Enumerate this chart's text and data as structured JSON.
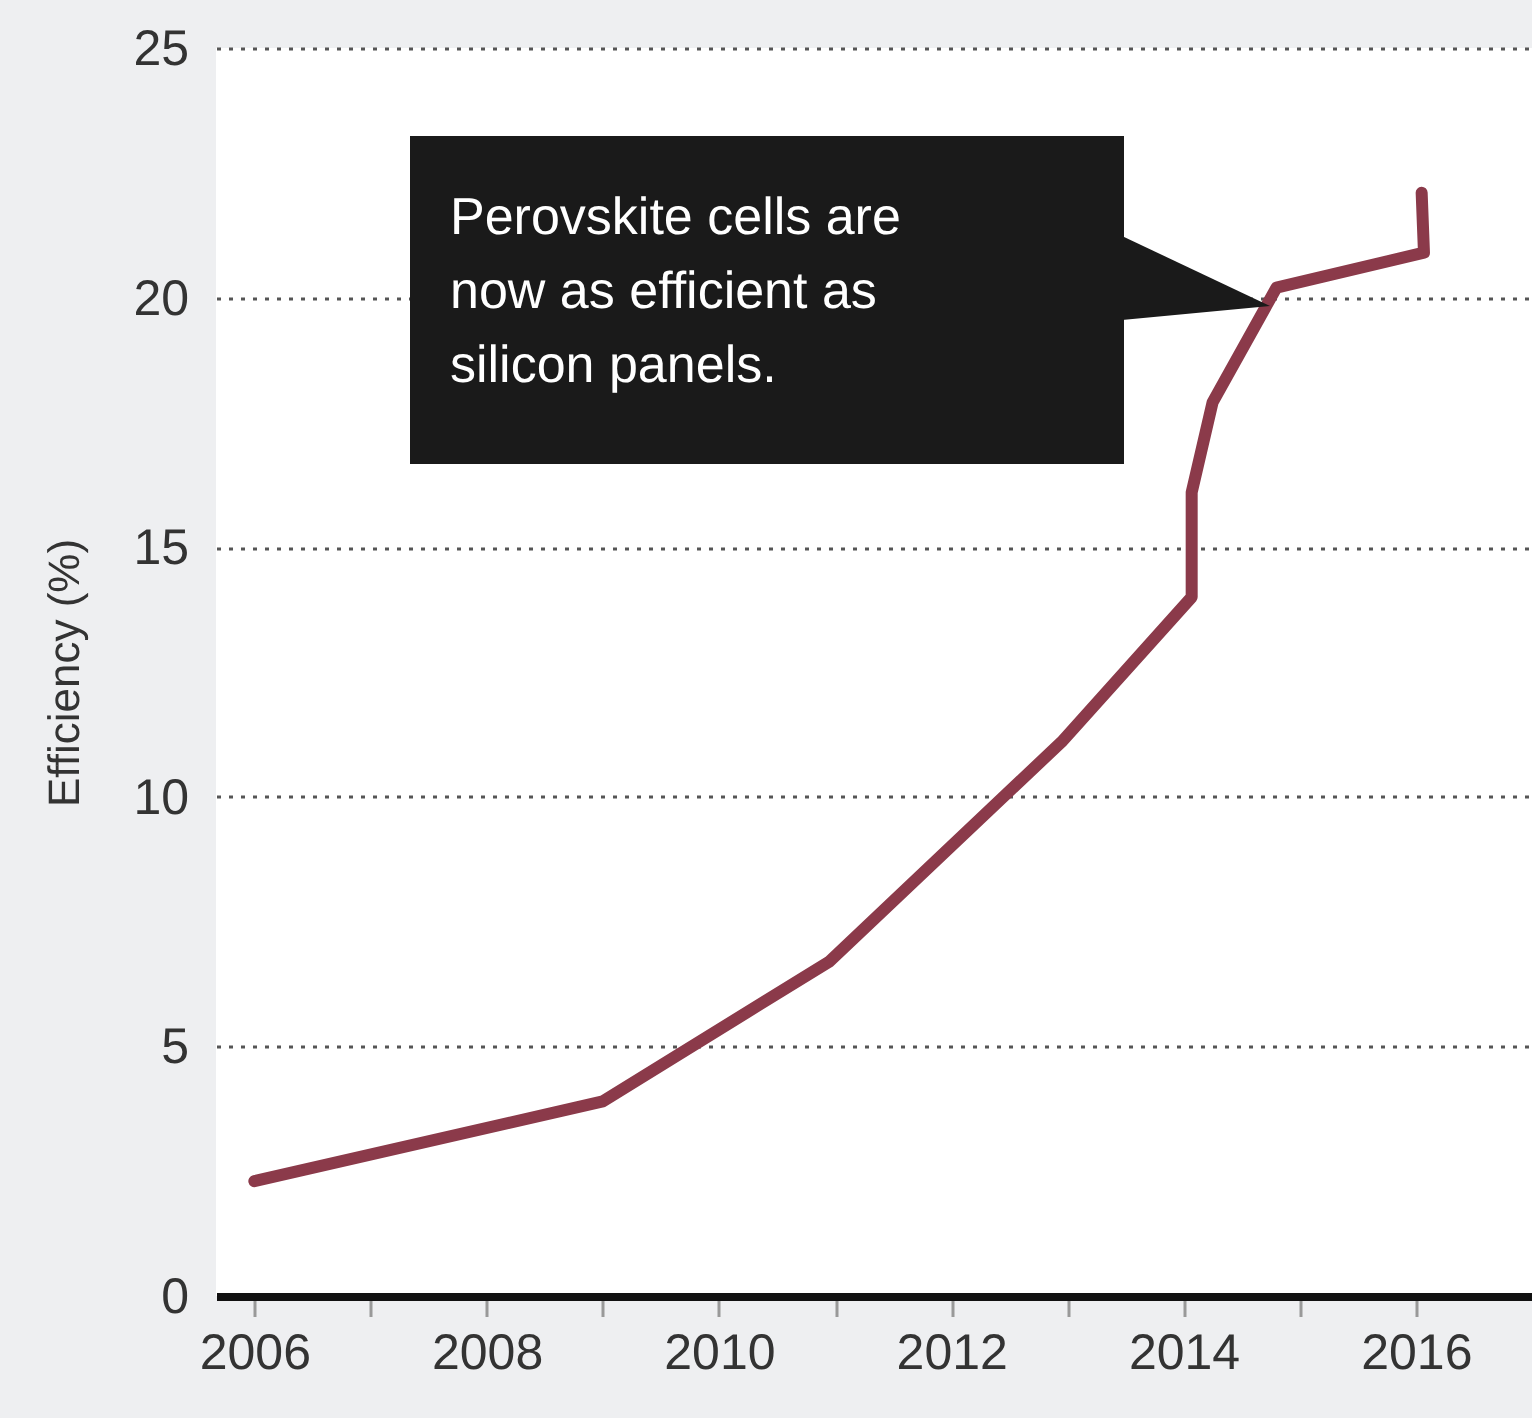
{
  "chart_data": {
    "type": "line",
    "ylabel": "Efficiency (%)",
    "x": [
      2006,
      2009,
      2010.95,
      2012.95,
      2014.07,
      2014.07,
      2014.25,
      2014.8,
      2016.07,
      2016.05
    ],
    "series": [
      {
        "color": "#8b3a4a",
        "values": [
          2.3,
          3.9,
          6.7,
          11.1,
          14.0,
          16.1,
          17.9,
          20.2,
          20.9,
          22.1
        ]
      }
    ],
    "xlim": [
      2005.67,
      2017
    ],
    "xticks": [
      2006,
      {
        "value": 2007,
        "label": null
      },
      2008,
      {
        "value": 2009,
        "label": null
      },
      2010,
      {
        "value": 2011,
        "label": null
      },
      2012,
      {
        "value": 2013,
        "label": null
      },
      2014,
      {
        "value": 2015,
        "label": null
      },
      2016
    ],
    "ylim": [
      0,
      25
    ],
    "yticks": [
      0,
      5,
      10,
      15,
      20,
      25
    ],
    "grid": "y",
    "annotations": [
      "Perovskite cells are now as efficient as silicon panels."
    ]
  }
}
